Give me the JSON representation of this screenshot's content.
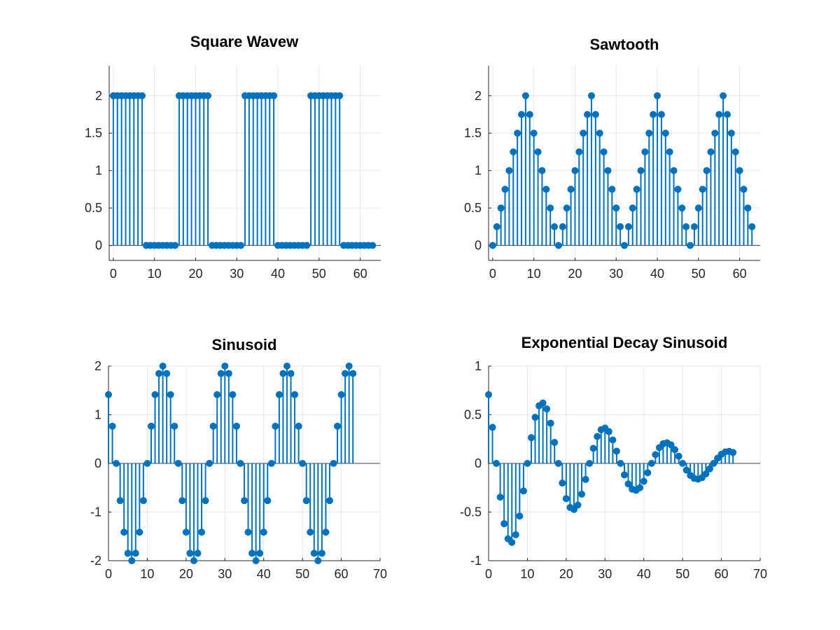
{
  "chart_data": [
    {
      "type": "stem",
      "title": "Square Wavew",
      "xlabel": "",
      "ylabel": "",
      "xlim": [
        -1,
        65
      ],
      "ylim": [
        -0.2,
        2.4
      ],
      "xticks": [
        0,
        10,
        20,
        30,
        40,
        50,
        60
      ],
      "yticks": [
        0,
        0.5,
        1,
        1.5,
        2
      ],
      "xtick_labels": [
        "0",
        "10",
        "20",
        "30",
        "40",
        "50",
        "60"
      ],
      "ytick_labels": [
        "0",
        "0.5",
        "1",
        "1.5",
        "2"
      ],
      "grid": true,
      "x": [
        0,
        1,
        2,
        3,
        4,
        5,
        6,
        7,
        8,
        9,
        10,
        11,
        12,
        13,
        14,
        15,
        16,
        17,
        18,
        19,
        20,
        21,
        22,
        23,
        24,
        25,
        26,
        27,
        28,
        29,
        30,
        31,
        32,
        33,
        34,
        35,
        36,
        37,
        38,
        39,
        40,
        41,
        42,
        43,
        44,
        45,
        46,
        47,
        48,
        49,
        50,
        51,
        52,
        53,
        54,
        55,
        56,
        57,
        58,
        59,
        60,
        61,
        62,
        63
      ],
      "values": [
        2,
        2,
        2,
        2,
        2,
        2,
        2,
        2,
        0,
        0,
        0,
        0,
        0,
        0,
        0,
        0,
        2,
        2,
        2,
        2,
        2,
        2,
        2,
        2,
        0,
        0,
        0,
        0,
        0,
        0,
        0,
        0,
        2,
        2,
        2,
        2,
        2,
        2,
        2,
        2,
        0,
        0,
        0,
        0,
        0,
        0,
        0,
        0,
        2,
        2,
        2,
        2,
        2,
        2,
        2,
        2,
        0,
        0,
        0,
        0,
        0,
        0,
        0,
        0
      ],
      "color": "#0072BD"
    },
    {
      "type": "stem",
      "title": "Sawtooth",
      "xlabel": "",
      "ylabel": "",
      "xlim": [
        -1,
        65
      ],
      "ylim": [
        -0.2,
        2.4
      ],
      "xticks": [
        0,
        10,
        20,
        30,
        40,
        50,
        60
      ],
      "yticks": [
        0,
        0.5,
        1,
        1.5,
        2
      ],
      "xtick_labels": [
        "0",
        "10",
        "20",
        "30",
        "40",
        "50",
        "60"
      ],
      "ytick_labels": [
        "0",
        "0.5",
        "1",
        "1.5",
        "2"
      ],
      "grid": true,
      "x": [
        0,
        1,
        2,
        3,
        4,
        5,
        6,
        7,
        8,
        9,
        10,
        11,
        12,
        13,
        14,
        15,
        16,
        17,
        18,
        19,
        20,
        21,
        22,
        23,
        24,
        25,
        26,
        27,
        28,
        29,
        30,
        31,
        32,
        33,
        34,
        35,
        36,
        37,
        38,
        39,
        40,
        41,
        42,
        43,
        44,
        45,
        46,
        47,
        48,
        49,
        50,
        51,
        52,
        53,
        54,
        55,
        56,
        57,
        58,
        59,
        60,
        61,
        62,
        63
      ],
      "values": [
        0,
        0.25,
        0.5,
        0.75,
        1,
        1.25,
        1.5,
        1.75,
        2,
        1.75,
        1.5,
        1.25,
        1,
        0.75,
        0.5,
        0.25,
        0,
        0.25,
        0.5,
        0.75,
        1,
        1.25,
        1.5,
        1.75,
        2,
        1.75,
        1.5,
        1.25,
        1,
        0.75,
        0.5,
        0.25,
        0,
        0.25,
        0.5,
        0.75,
        1,
        1.25,
        1.5,
        1.75,
        2,
        1.75,
        1.5,
        1.25,
        1,
        0.75,
        0.5,
        0.25,
        0,
        0.25,
        0.5,
        0.75,
        1,
        1.25,
        1.5,
        1.75,
        2,
        1.75,
        1.5,
        1.25,
        1,
        0.75,
        0.5,
        0.25
      ],
      "color": "#0072BD"
    },
    {
      "type": "stem",
      "title": "Sinusoid",
      "xlabel": "",
      "ylabel": "",
      "xlim": [
        0,
        70
      ],
      "ylim": [
        -2,
        2
      ],
      "xticks": [
        0,
        10,
        20,
        30,
        40,
        50,
        60,
        70
      ],
      "yticks": [
        -2,
        -1,
        0,
        1,
        2
      ],
      "xtick_labels": [
        "0",
        "10",
        "20",
        "30",
        "40",
        "50",
        "60",
        "70"
      ],
      "ytick_labels": [
        "-2",
        "-1",
        "0",
        "1",
        "2"
      ],
      "grid": true,
      "x": [
        0,
        1,
        2,
        3,
        4,
        5,
        6,
        7,
        8,
        9,
        10,
        11,
        12,
        13,
        14,
        15,
        16,
        17,
        18,
        19,
        20,
        21,
        22,
        23,
        24,
        25,
        26,
        27,
        28,
        29,
        30,
        31,
        32,
        33,
        34,
        35,
        36,
        37,
        38,
        39,
        40,
        41,
        42,
        43,
        44,
        45,
        46,
        47,
        48,
        49,
        50,
        51,
        52,
        53,
        54,
        55,
        56,
        57,
        58,
        59,
        60,
        61,
        62,
        63
      ],
      "values": [
        1.414,
        0.765,
        0,
        -0.765,
        -1.414,
        -1.848,
        -2,
        -1.848,
        -1.414,
        -0.765,
        0,
        0.765,
        1.414,
        1.848,
        2,
        1.848,
        1.414,
        0.765,
        0,
        -0.765,
        -1.414,
        -1.848,
        -2,
        -1.848,
        -1.414,
        -0.765,
        0,
        0.765,
        1.414,
        1.848,
        2,
        1.848,
        1.414,
        0.765,
        0,
        -0.765,
        -1.414,
        -1.848,
        -2,
        -1.848,
        -1.414,
        -0.765,
        0,
        0.765,
        1.414,
        1.848,
        2,
        1.848,
        1.414,
        0.765,
        0,
        -0.765,
        -1.414,
        -1.848,
        -2,
        -1.848,
        -1.414,
        -0.765,
        0,
        0.765,
        1.414,
        1.848,
        2,
        1.848
      ],
      "color": "#0072BD"
    },
    {
      "type": "stem",
      "title": "Exponential Decay Sinusoid",
      "xlabel": "",
      "ylabel": "",
      "xlim": [
        0,
        70
      ],
      "ylim": [
        -1,
        1
      ],
      "xticks": [
        0,
        10,
        20,
        30,
        40,
        50,
        60,
        70
      ],
      "yticks": [
        -1,
        -0.5,
        0,
        0.5,
        1
      ],
      "xtick_labels": [
        "0",
        "10",
        "20",
        "30",
        "40",
        "50",
        "60",
        "70"
      ],
      "ytick_labels": [
        "-1",
        "-0.5",
        "0",
        "0.5",
        "1"
      ],
      "grid": true,
      "x": [
        0,
        1,
        2,
        3,
        4,
        5,
        6,
        7,
        8,
        9,
        10,
        11,
        12,
        13,
        14,
        15,
        16,
        17,
        18,
        19,
        20,
        21,
        22,
        23,
        24,
        25,
        26,
        27,
        28,
        29,
        30,
        31,
        32,
        33,
        34,
        35,
        36,
        37,
        38,
        39,
        40,
        41,
        42,
        43,
        44,
        45,
        46,
        47,
        48,
        49,
        50,
        51,
        52,
        53,
        54,
        55,
        56,
        57,
        58,
        59,
        60,
        61,
        62,
        63
      ],
      "values": [
        0.707,
        0.371,
        0,
        -0.347,
        -0.62,
        -0.775,
        -0.812,
        -0.733,
        -0.541,
        -0.283,
        0,
        0.265,
        0.474,
        0.592,
        0.621,
        0.56,
        0.413,
        0.216,
        0,
        -0.202,
        -0.362,
        -0.453,
        -0.474,
        -0.428,
        -0.316,
        -0.165,
        0,
        0.155,
        0.277,
        0.346,
        0.363,
        0.327,
        0.241,
        0.126,
        0,
        -0.118,
        -0.211,
        -0.264,
        -0.277,
        -0.25,
        -0.184,
        -0.096,
        0,
        0.09,
        0.162,
        0.202,
        0.212,
        0.191,
        0.141,
        0.074,
        0,
        -0.069,
        -0.123,
        -0.154,
        -0.162,
        -0.146,
        -0.108,
        -0.056,
        0,
        0.053,
        0.094,
        0.118,
        0.124,
        0.112
      ],
      "color": "#0072BD"
    }
  ]
}
